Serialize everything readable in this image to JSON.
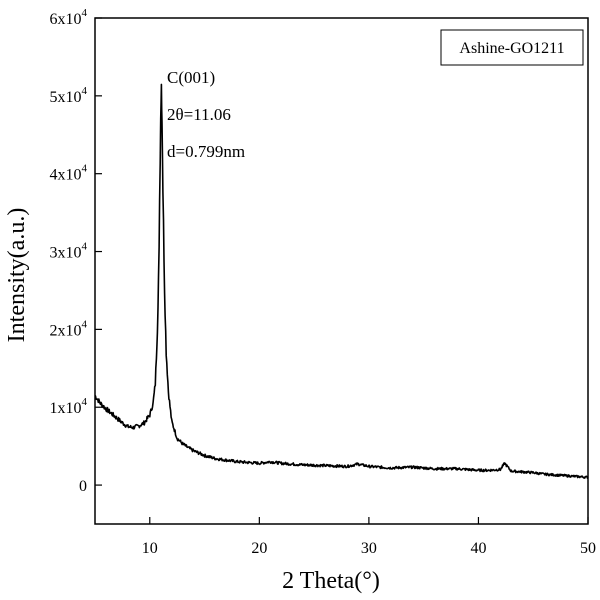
{
  "chart_data": {
    "type": "line",
    "xlabel": "2 Theta(°)",
    "ylabel": "Intensity(a.u.)",
    "xlim": [
      5,
      50
    ],
    "ylim": [
      -5000,
      60000
    ],
    "x_ticks": [
      10,
      20,
      30,
      40,
      50
    ],
    "y_ticks": [
      {
        "value": 0,
        "base": "0",
        "exp": ""
      },
      {
        "value": 10000,
        "base": "1x10",
        "exp": "4"
      },
      {
        "value": 20000,
        "base": "2x10",
        "exp": "4"
      },
      {
        "value": 30000,
        "base": "3x10",
        "exp": "4"
      },
      {
        "value": 40000,
        "base": "4x10",
        "exp": "4"
      },
      {
        "value": 50000,
        "base": "5x10",
        "exp": "4"
      },
      {
        "value": 60000,
        "base": "6x10",
        "exp": "4"
      }
    ],
    "grid": false,
    "legend": {
      "position": "top-right",
      "entries": [
        "Ashine-GO1211"
      ]
    },
    "annotations": [
      "C(001)",
      "2θ=11.06",
      "d=0.799nm"
    ],
    "series": [
      {
        "color": "#000000",
        "x": [
          5,
          5.5,
          6,
          6.5,
          7,
          7.5,
          8,
          8.5,
          9,
          9.5,
          10,
          10.3,
          10.5,
          10.7,
          10.85,
          10.95,
          11.0,
          11.06,
          11.12,
          11.2,
          11.35,
          11.5,
          11.7,
          12.0,
          12.5,
          13,
          13.5,
          14,
          15,
          16,
          17,
          18,
          19,
          20,
          21,
          22,
          24,
          26,
          28,
          29,
          30,
          32,
          34,
          36,
          38,
          40,
          41,
          42,
          42.4,
          42.8,
          43,
          44,
          45,
          46,
          47,
          48,
          49,
          50
        ],
        "y": [
          11500,
          10500,
          9800,
          9200,
          8600,
          8000,
          7500,
          7400,
          7600,
          8000,
          9000,
          10500,
          13000,
          20000,
          30000,
          42000,
          48000,
          51500,
          47000,
          38000,
          25000,
          17000,
          12000,
          8200,
          6000,
          5300,
          4800,
          4400,
          3800,
          3400,
          3200,
          3000,
          2900,
          2800,
          3000,
          2800,
          2600,
          2500,
          2400,
          2700,
          2400,
          2200,
          2300,
          2100,
          2100,
          1900,
          1900,
          2000,
          2800,
          2100,
          1800,
          1700,
          1600,
          1400,
          1300,
          1200,
          1100,
          1000
        ]
      }
    ]
  }
}
